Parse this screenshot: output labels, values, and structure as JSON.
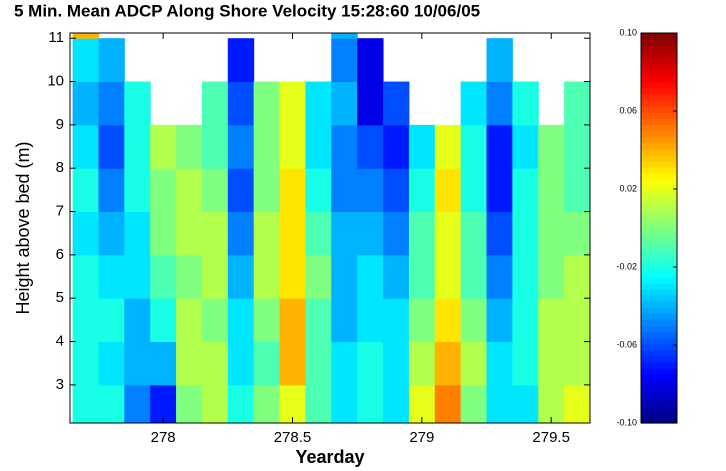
{
  "chart_data": {
    "type": "heatmap",
    "title": "5 Min. Mean ADCP Along Shore Velocity 15:28:60 10/06/05",
    "xlabel": "Yearday",
    "ylabel": "Height above bed (m)",
    "xlim": [
      277.64,
      279.65
    ],
    "ylim": [
      2.12,
      11.12
    ],
    "xticks": [
      278,
      278.5,
      279,
      279.5
    ],
    "yticks": [
      3,
      4,
      5,
      6,
      7,
      8,
      9,
      10,
      11
    ],
    "clim": [
      -0.1,
      0.1
    ],
    "cticks": [
      {
        "value": 0.1,
        "label": "0.10"
      },
      0.06,
      0.02,
      -0.02,
      -0.06,
      {
        "value": -0.1,
        "label": "-0.10"
      }
    ],
    "colormap": "jet",
    "x_edges": [
      277.65,
      277.75,
      277.85,
      277.95,
      278.05,
      278.15,
      278.25,
      278.35,
      278.45,
      278.55,
      278.65,
      278.75,
      278.85,
      278.95,
      279.05,
      279.15,
      279.25,
      279.35,
      279.45,
      279.55,
      279.65
    ],
    "y_edges": [
      2.12,
      3,
      4,
      5,
      6,
      7,
      8,
      9,
      10,
      11,
      11.12
    ],
    "values": [
      [
        -0.02,
        -0.02,
        -0.02,
        -0.02,
        -0.03,
        -0.02,
        -0.03,
        -0.04,
        -0.03,
        0.04
      ],
      [
        -0.02,
        -0.03,
        -0.02,
        -0.03,
        -0.04,
        -0.05,
        -0.06,
        -0.05,
        -0.04,
        null
      ],
      [
        -0.05,
        -0.04,
        -0.04,
        -0.03,
        -0.03,
        -0.02,
        -0.02,
        -0.02,
        null,
        null
      ],
      [
        -0.07,
        -0.04,
        -0.02,
        -0.01,
        0.0,
        0.0,
        0.01,
        null,
        null,
        null
      ],
      [
        0.0,
        0.01,
        0.01,
        0.0,
        0.01,
        0.01,
        0.0,
        null,
        null,
        null
      ],
      [
        0.01,
        0.01,
        0.0,
        0.01,
        0.01,
        0.0,
        -0.01,
        -0.01,
        null,
        null
      ],
      [
        -0.02,
        -0.03,
        -0.03,
        -0.04,
        -0.05,
        -0.06,
        -0.05,
        -0.06,
        -0.07,
        null
      ],
      [
        0.0,
        -0.01,
        0.0,
        0.01,
        0.01,
        0.0,
        0.0,
        0.0,
        null,
        null
      ],
      [
        0.02,
        0.04,
        0.04,
        0.03,
        0.03,
        0.03,
        0.02,
        0.02,
        null,
        null
      ],
      [
        -0.01,
        -0.01,
        -0.01,
        0.0,
        -0.01,
        -0.02,
        -0.03,
        -0.03,
        null,
        null
      ],
      [
        -0.03,
        -0.03,
        -0.04,
        -0.04,
        -0.04,
        -0.05,
        -0.05,
        -0.04,
        -0.05,
        -0.04
      ],
      [
        -0.02,
        -0.02,
        -0.03,
        -0.03,
        -0.04,
        -0.05,
        -0.06,
        -0.08,
        -0.08,
        null
      ],
      [
        -0.03,
        -0.03,
        -0.03,
        -0.04,
        -0.05,
        -0.06,
        -0.07,
        -0.06,
        null,
        null
      ],
      [
        0.02,
        0.01,
        0.0,
        -0.01,
        -0.01,
        -0.02,
        -0.03,
        null,
        null,
        null
      ],
      [
        0.05,
        0.04,
        0.03,
        0.02,
        0.02,
        0.03,
        0.02,
        null,
        null,
        null
      ],
      [
        0.0,
        0.01,
        0.0,
        -0.01,
        -0.01,
        -0.02,
        -0.02,
        -0.03,
        null,
        null
      ],
      [
        -0.03,
        -0.03,
        -0.04,
        -0.05,
        -0.06,
        -0.07,
        -0.07,
        -0.05,
        -0.04,
        null
      ],
      [
        -0.03,
        -0.02,
        -0.02,
        -0.02,
        -0.02,
        -0.02,
        -0.03,
        -0.02,
        null,
        null
      ],
      [
        0.01,
        0.01,
        0.01,
        0.0,
        0.0,
        0.0,
        0.0,
        null,
        null,
        null
      ],
      [
        0.02,
        0.01,
        0.01,
        0.01,
        0.0,
        -0.01,
        -0.01,
        -0.01,
        null,
        null
      ]
    ]
  }
}
